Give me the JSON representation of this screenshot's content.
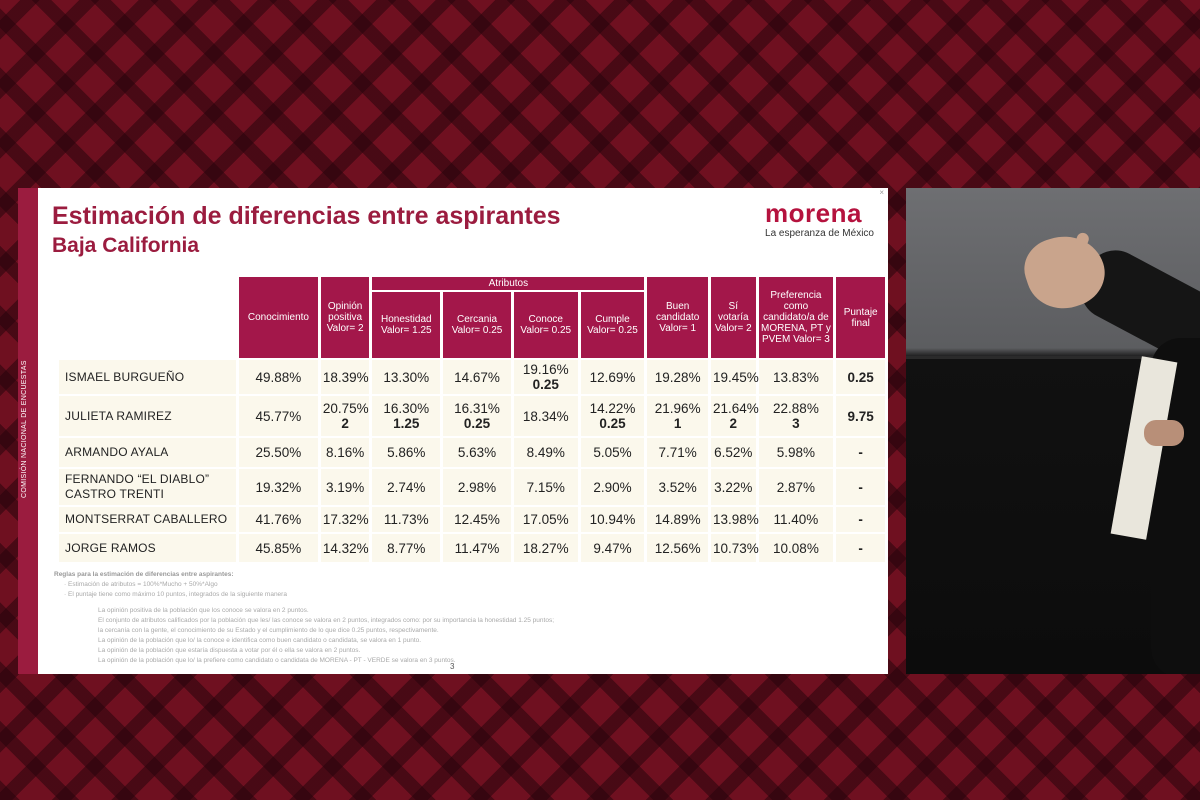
{
  "slide": {
    "side_label": "COMISIÓN NACIONAL DE ENCUESTAS",
    "title": "Estimación de diferencias entre aspirantes",
    "subtitle": "Baja California",
    "logo": {
      "word": "morena",
      "tagline": "La esperanza de México"
    },
    "page_number": "3"
  },
  "table": {
    "group_header": "Atributos",
    "columns": [
      "Conocimiento",
      "Opinión positiva Valor= 2",
      "Honestidad Valor= 1.25",
      "Cercania Valor= 0.25",
      "Conoce Valor= 0.25",
      "Cumple Valor= 0.25",
      "Buen candidato Valor= 1",
      "Sí votaría Valor= 2",
      "Preferencia como candidato/a de MORENA, PT y PVEM Valor= 3",
      "Puntaje final"
    ],
    "rows": [
      {
        "name": "ISMAEL BURGUEÑO",
        "values": [
          "49.88%",
          "18.39%",
          "13.30%",
          "14.67%",
          "19.16%",
          "12.69%",
          "19.28%",
          "19.45%",
          "13.83%",
          ""
        ],
        "points": [
          "",
          "",
          "",
          "",
          "0.25",
          "",
          "",
          "",
          "",
          "0.25"
        ]
      },
      {
        "name": "JULIETA RAMIREZ",
        "values": [
          "45.77%",
          "20.75%",
          "16.30%",
          "16.31%",
          "18.34%",
          "14.22%",
          "21.96%",
          "21.64%",
          "22.88%",
          ""
        ],
        "points": [
          "",
          "2",
          "1.25",
          "0.25",
          "",
          "0.25",
          "1",
          "2",
          "3",
          "9.75"
        ]
      },
      {
        "name": "ARMANDO AYALA",
        "values": [
          "25.50%",
          "8.16%",
          "5.86%",
          "5.63%",
          "8.49%",
          "5.05%",
          "7.71%",
          "6.52%",
          "5.98%",
          "-"
        ],
        "points": [
          "",
          "",
          "",
          "",
          "",
          "",
          "",
          "",
          "",
          ""
        ]
      },
      {
        "name": "FERNANDO “EL DIABLO” CASTRO TRENTI",
        "values": [
          "19.32%",
          "3.19%",
          "2.74%",
          "2.98%",
          "7.15%",
          "2.90%",
          "3.52%",
          "3.22%",
          "2.87%",
          "-"
        ],
        "points": [
          "",
          "",
          "",
          "",
          "",
          "",
          "",
          "",
          "",
          ""
        ]
      },
      {
        "name": "MONTSERRAT CABALLERO",
        "values": [
          "41.76%",
          "17.32%",
          "11.73%",
          "12.45%",
          "17.05%",
          "10.94%",
          "14.89%",
          "13.98%",
          "11.40%",
          "-"
        ],
        "points": [
          "",
          "",
          "",
          "",
          "",
          "",
          "",
          "",
          "",
          ""
        ]
      },
      {
        "name": "JORGE RAMOS",
        "values": [
          "45.85%",
          "14.32%",
          "8.77%",
          "11.47%",
          "18.27%",
          "9.47%",
          "12.56%",
          "10.73%",
          "10.08%",
          "-"
        ],
        "points": [
          "",
          "",
          "",
          "",
          "",
          "",
          "",
          "",
          "",
          ""
        ]
      }
    ]
  },
  "notes": {
    "heading": "Reglas para la estimación de diferencias entre aspirantes:",
    "bullets": [
      "Estimación de atributos = 100%*Mucho + 50%*Algo",
      "El puntaje tiene como máximo 10 puntos, integrados de la siguiente manera"
    ],
    "sub_bullets": [
      "La opinión positiva de la población que los conoce se valora en 2 puntos.",
      "El conjunto de atributos calificados por la población que les/ las conoce se valora en 2 puntos, integrados como: por su importancia la honestidad 1.25 puntos;",
      "la cercanía con la gente, el conocimiento de su Estado y el cumplimiento de lo que dice 0.25 puntos, respectivamente.",
      "La opinión de la población que lo/ la conoce e identifica como buen candidato o candidata, se valora en 1 punto.",
      "La opinión de la población que estaría dispuesta a votar por él o ella se valora en 2 puntos.",
      "La opinión de la población que lo/ la prefiere como candidato o candidata de MORENA - PT - VERDE se valora en 3 puntos."
    ]
  },
  "colors": {
    "header_bg": "#a3174a",
    "brand": "#9b1c3f",
    "cell_bg": "#fbf8ec",
    "background": "#6f1020"
  }
}
